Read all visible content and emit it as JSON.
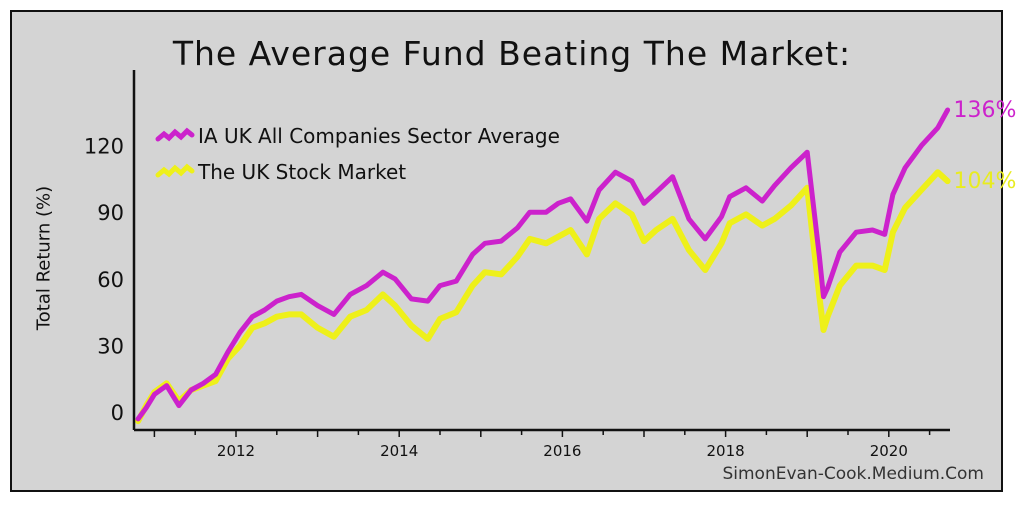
{
  "title": "The Average Fund Beating The Market:",
  "credit": "SimonEvan-Cook.Medium.Com",
  "chart_data": {
    "type": "line",
    "title": "The Average Fund Beating The Market:",
    "ylabel": "Total Return (%)",
    "xlabel": "",
    "ylim": [
      -8,
      145
    ],
    "xlim": [
      2010.75,
      2020.75
    ],
    "yticks": [
      0,
      30,
      60,
      90,
      120
    ],
    "xticks": [
      "2012",
      "2014",
      "2016",
      "2018",
      "2020"
    ],
    "xtick_values": [
      2012,
      2014,
      2016,
      2018,
      2020
    ],
    "grid": false,
    "legend_position": "top-left",
    "series": [
      {
        "name": "IA UK All Companies Sector Average",
        "color": "#cc22cc",
        "end_label": "136%",
        "x": [
          2010.8,
          2010.9,
          2011.0,
          2011.15,
          2011.3,
          2011.45,
          2011.6,
          2011.75,
          2011.9,
          2012.05,
          2012.2,
          2012.35,
          2012.5,
          2012.65,
          2012.8,
          2013.0,
          2013.2,
          2013.4,
          2013.6,
          2013.8,
          2013.95,
          2014.15,
          2014.35,
          2014.5,
          2014.7,
          2014.9,
          2015.05,
          2015.25,
          2015.45,
          2015.6,
          2015.8,
          2015.95,
          2016.1,
          2016.3,
          2016.45,
          2016.65,
          2016.85,
          2017.0,
          2017.15,
          2017.35,
          2017.55,
          2017.75,
          2017.95,
          2018.05,
          2018.25,
          2018.45,
          2018.6,
          2018.8,
          2019.0,
          2019.15,
          2019.2,
          2019.25,
          2019.4,
          2019.6,
          2019.8,
          2019.95,
          2020.05,
          2020.2,
          2020.4,
          2020.6,
          2020.72
        ],
        "values": [
          -3,
          2,
          8,
          12,
          3,
          10,
          13,
          17,
          27,
          36,
          43,
          46,
          50,
          52,
          53,
          48,
          44,
          53,
          57,
          63,
          60,
          51,
          50,
          57,
          59,
          71,
          76,
          77,
          83,
          90,
          90,
          94,
          96,
          86,
          100,
          108,
          104,
          94,
          99,
          106,
          87,
          78,
          88,
          97,
          101,
          95,
          102,
          110,
          117,
          70,
          52,
          56,
          72,
          81,
          82,
          80,
          98,
          110,
          120,
          128,
          136
        ]
      },
      {
        "name": "The UK Stock Market",
        "color": "#eef01a",
        "end_label": "104%",
        "x": [
          2010.8,
          2010.9,
          2011.0,
          2011.15,
          2011.3,
          2011.45,
          2011.6,
          2011.75,
          2011.9,
          2012.05,
          2012.2,
          2012.35,
          2012.5,
          2012.65,
          2012.8,
          2013.0,
          2013.2,
          2013.4,
          2013.6,
          2013.8,
          2013.95,
          2014.15,
          2014.35,
          2014.5,
          2014.7,
          2014.9,
          2015.05,
          2015.25,
          2015.45,
          2015.6,
          2015.8,
          2015.95,
          2016.1,
          2016.3,
          2016.45,
          2016.65,
          2016.85,
          2017.0,
          2017.15,
          2017.35,
          2017.55,
          2017.75,
          2017.95,
          2018.05,
          2018.25,
          2018.45,
          2018.6,
          2018.8,
          2019.0,
          2019.15,
          2019.2,
          2019.25,
          2019.4,
          2019.6,
          2019.8,
          2019.95,
          2020.05,
          2020.2,
          2020.4,
          2020.6,
          2020.72
        ],
        "values": [
          -4,
          3,
          9,
          13,
          5,
          10,
          12,
          14,
          24,
          30,
          38,
          40,
          43,
          44,
          44,
          38,
          34,
          43,
          46,
          53,
          48,
          39,
          33,
          42,
          45,
          57,
          63,
          62,
          70,
          78,
          76,
          79,
          82,
          71,
          87,
          94,
          89,
          77,
          82,
          87,
          73,
          64,
          76,
          85,
          89,
          84,
          87,
          93,
          101,
          52,
          37,
          43,
          57,
          66,
          66,
          64,
          81,
          92,
          100,
          108,
          104
        ]
      }
    ]
  }
}
